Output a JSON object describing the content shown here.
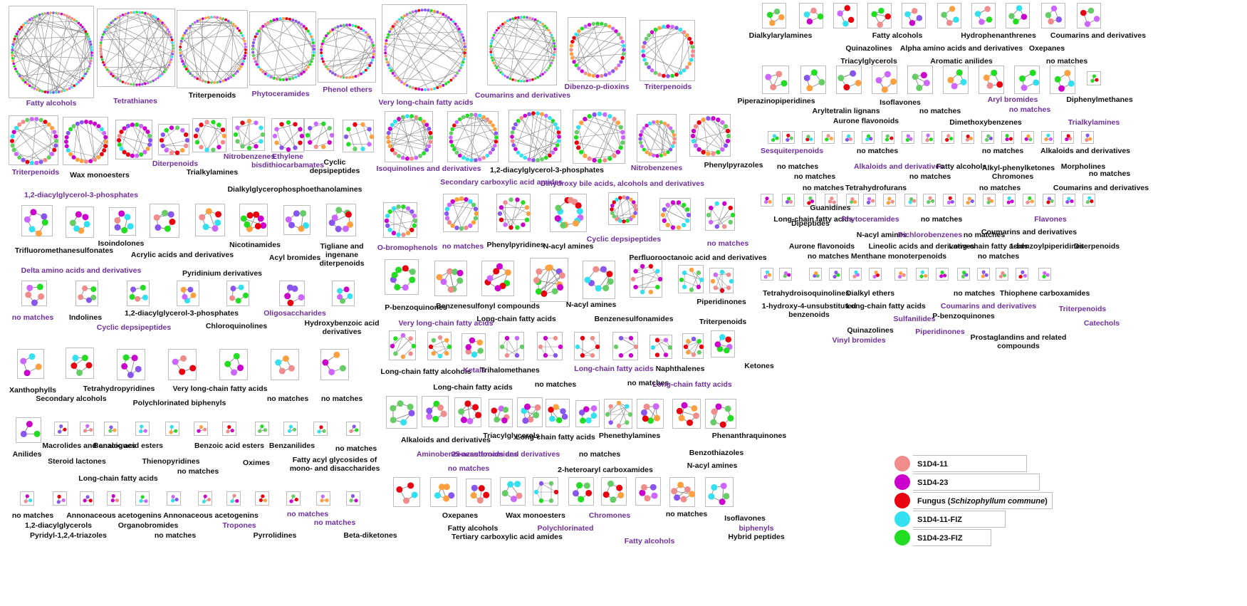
{
  "colors": {
    "edge": "#8a8a8a",
    "node_palette": [
      "#f08c8c",
      "#cc00cc",
      "#e8000e",
      "#33e0f0",
      "#22dd22",
      "#ffa040",
      "#8855ee",
      "#cc66ff",
      "#66cc66"
    ]
  },
  "labels": [
    {
      "text": "Fatty alcohols",
      "color": "purple"
    },
    {
      "text": "Tetrathianes",
      "color": "purple"
    },
    {
      "text": "Triterpenoids",
      "color": "black"
    },
    {
      "text": "Phytoceramides",
      "color": "purple"
    },
    {
      "text": "Phenol ethers",
      "color": "purple"
    },
    {
      "text": "Very long-chain fatty acids",
      "color": "purple"
    },
    {
      "text": "Coumarins and derivatives",
      "color": "purple"
    },
    {
      "text": "Dibenzo-p-dioxins",
      "color": "purple"
    },
    {
      "text": "Triterpenoids",
      "color": "purple"
    },
    {
      "text": "Triterpenoids",
      "color": "purple"
    },
    {
      "text": "Wax monoesters",
      "color": "black"
    },
    {
      "text": "Diterpenoids",
      "color": "purple"
    },
    {
      "text": "Trialkylamines",
      "color": "black"
    },
    {
      "text": "Nitrobenzenes",
      "color": "purple"
    },
    {
      "text": "Ethylene",
      "color": "purple"
    },
    {
      "text": "bisdithiocarbamates",
      "color": "purple"
    },
    {
      "text": "Cyclic",
      "color": "black"
    },
    {
      "text": "depsipeptides",
      "color": "black"
    },
    {
      "text": "1,2-diacylglycerol-3-phosphates",
      "color": "purple"
    },
    {
      "text": "Dialkylglycerophosphoethanolamines",
      "color": "black"
    },
    {
      "text": "Trifluoromethanesulfonates",
      "color": "black"
    },
    {
      "text": "Isoindolones",
      "color": "black"
    },
    {
      "text": "Acrylic acids and derivatives",
      "color": "black"
    },
    {
      "text": "Nicotinamides",
      "color": "black"
    },
    {
      "text": "Acyl bromides",
      "color": "black"
    },
    {
      "text": "Tigliane and",
      "color": "black"
    },
    {
      "text": "ingenane",
      "color": "black"
    },
    {
      "text": "diterpenoids",
      "color": "black"
    },
    {
      "text": "Delta amino acids and derivatives",
      "color": "purple"
    },
    {
      "text": "Pyridinium derivatives",
      "color": "black"
    },
    {
      "text": "no matches",
      "color": "purple"
    },
    {
      "text": "Indolines",
      "color": "black"
    },
    {
      "text": "1,2-diacylglycerol-3-phosphates",
      "color": "black"
    },
    {
      "text": "Oligosaccharides",
      "color": "purple"
    },
    {
      "text": "Chloroquinolines",
      "color": "black"
    },
    {
      "text": "Cyclic depsipeptides",
      "color": "purple"
    },
    {
      "text": "Hydroxybenzoic acid",
      "color": "black"
    },
    {
      "text": "derivatives",
      "color": "black"
    },
    {
      "text": "Xanthophylls",
      "color": "black"
    },
    {
      "text": "Tetrahydropyridines",
      "color": "black"
    },
    {
      "text": "Very long-chain fatty acids",
      "color": "black"
    },
    {
      "text": "Secondary alcohols",
      "color": "black"
    },
    {
      "text": "no matches",
      "color": "black"
    },
    {
      "text": "no matches",
      "color": "black"
    },
    {
      "text": "Polychlorinated biphenyls",
      "color": "black"
    },
    {
      "text": "Anilides",
      "color": "black"
    },
    {
      "text": "Macrolides and analogues",
      "color": "black"
    },
    {
      "text": "Benzoic acid esters",
      "color": "black"
    },
    {
      "text": "Benzoic acid esters",
      "color": "black"
    },
    {
      "text": "Benzanilides",
      "color": "black"
    },
    {
      "text": "no matches",
      "color": "black"
    },
    {
      "text": "Steroid lactones",
      "color": "black"
    },
    {
      "text": "Thienopyridines",
      "color": "black"
    },
    {
      "text": "Oximes",
      "color": "black"
    },
    {
      "text": "Fatty acyl glycosides of",
      "color": "black"
    },
    {
      "text": "mono- and disaccharides",
      "color": "black"
    },
    {
      "text": "no matches",
      "color": "black"
    },
    {
      "text": "Long-chain fatty acids",
      "color": "black"
    },
    {
      "text": "no matches",
      "color": "black"
    },
    {
      "text": "Annonaceous acetogenins",
      "color": "black"
    },
    {
      "text": "Annonaceous acetogenins",
      "color": "black"
    },
    {
      "text": "no matches",
      "color": "purple"
    },
    {
      "text": "1,2-diacylglycerols",
      "color": "black"
    },
    {
      "text": "Organobromides",
      "color": "black"
    },
    {
      "text": "Tropones",
      "color": "purple"
    },
    {
      "text": "no matches",
      "color": "purple"
    },
    {
      "text": "Pyridyl-1,2,4-triazoles",
      "color": "black"
    },
    {
      "text": "no matches",
      "color": "black"
    },
    {
      "text": "Pyrrolidines",
      "color": "black"
    },
    {
      "text": "Beta-diketones",
      "color": "black"
    },
    {
      "text": "Isoquinolines and derivatives",
      "color": "purple"
    },
    {
      "text": "1,2-diacylglycerol-3-phosphates",
      "color": "black"
    },
    {
      "text": "Nitrobenzenes",
      "color": "purple"
    },
    {
      "text": "Phenylpyrazoles",
      "color": "black"
    },
    {
      "text": "Secondary carboxylic acid amides",
      "color": "purple"
    },
    {
      "text": "Dihydroxy bile acids, alcohols and derivatives",
      "color": "purple"
    },
    {
      "text": "O-bromophenols",
      "color": "purple"
    },
    {
      "text": "no matches",
      "color": "purple"
    },
    {
      "text": "Phenylpyridines",
      "color": "black"
    },
    {
      "text": "N-acyl amines",
      "color": "black"
    },
    {
      "text": "Cyclic depsipeptides",
      "color": "purple"
    },
    {
      "text": "no matches",
      "color": "purple"
    },
    {
      "text": "Perfluorooctanoic acid and derivatives",
      "color": "black"
    },
    {
      "text": "P-benzoquinones",
      "color": "black"
    },
    {
      "text": "Benzenesulfonyl compounds",
      "color": "black"
    },
    {
      "text": "N-acyl amines",
      "color": "black"
    },
    {
      "text": "Piperidinones",
      "color": "black"
    },
    {
      "text": "Long-chain fatty acids",
      "color": "black"
    },
    {
      "text": "Benzenesulfonamides",
      "color": "black"
    },
    {
      "text": "Triterpenoids",
      "color": "black"
    },
    {
      "text": "Very long-chain fatty acids",
      "color": "purple"
    },
    {
      "text": "Long-chain fatty alcohols",
      "color": "black"
    },
    {
      "text": "Ketals",
      "color": "purple"
    },
    {
      "text": "Trihalomethanes",
      "color": "black"
    },
    {
      "text": "Long-chain fatty acids",
      "color": "purple"
    },
    {
      "text": "Naphthalenes",
      "color": "black"
    },
    {
      "text": "Ketones",
      "color": "black"
    },
    {
      "text": "Long-chain fatty acids",
      "color": "black"
    },
    {
      "text": "no matches",
      "color": "black"
    },
    {
      "text": "no matches",
      "color": "black"
    },
    {
      "text": "Long-chain fatty acids",
      "color": "purple"
    },
    {
      "text": "Alkaloids and derivatives",
      "color": "black"
    },
    {
      "text": "Triacylglycerols",
      "color": "black"
    },
    {
      "text": "Long-chain fatty acids",
      "color": "black"
    },
    {
      "text": "Phenethylamines",
      "color": "black"
    },
    {
      "text": "Phenanthraquinones",
      "color": "black"
    },
    {
      "text": "Aminobenzenesulfonamides",
      "color": "purple"
    },
    {
      "text": "25-azasteroids and derivatives",
      "color": "purple"
    },
    {
      "text": "no matches",
      "color": "black"
    },
    {
      "text": "Benzothiazoles",
      "color": "black"
    },
    {
      "text": "no matches",
      "color": "purple"
    },
    {
      "text": "N-acyl amines",
      "color": "black"
    },
    {
      "text": "2-heteroaryl carboxamides",
      "color": "black"
    },
    {
      "text": "Oxepanes",
      "color": "black"
    },
    {
      "text": "Wax monoesters",
      "color": "black"
    },
    {
      "text": "Chromones",
      "color": "purple"
    },
    {
      "text": "no matches",
      "color": "black"
    },
    {
      "text": "Isoflavones",
      "color": "black"
    },
    {
      "text": "Fatty alcohols",
      "color": "black"
    },
    {
      "text": "Polychlorinated",
      "color": "purple"
    },
    {
      "text": "biphenyls",
      "color": "purple"
    },
    {
      "text": "Hybrid peptides",
      "color": "black"
    },
    {
      "text": "Tertiary carboxylic acid amides",
      "color": "black"
    },
    {
      "text": "Fatty alcohols",
      "color": "purple"
    },
    {
      "text": "Dialkylarylamines",
      "color": "black"
    },
    {
      "text": "Fatty alcohols",
      "color": "black"
    },
    {
      "text": "Hydrophenanthrenes",
      "color": "black"
    },
    {
      "text": "Coumarins and derivatives",
      "color": "black"
    },
    {
      "text": "Quinazolines",
      "color": "black"
    },
    {
      "text": "Alpha amino acids and derivatives",
      "color": "black"
    },
    {
      "text": "Oxepanes",
      "color": "black"
    },
    {
      "text": "Triacylglycerols",
      "color": "black"
    },
    {
      "text": "Aromatic anilides",
      "color": "black"
    },
    {
      "text": "no matches",
      "color": "black"
    },
    {
      "text": "Piperazinopiperidines",
      "color": "black"
    },
    {
      "text": "Aryl bromides",
      "color": "purple"
    },
    {
      "text": "Diphenylmethanes",
      "color": "black"
    },
    {
      "text": "Isoflavones",
      "color": "black"
    },
    {
      "text": "no matches",
      "color": "purple"
    },
    {
      "text": "Aryltetralin lignans",
      "color": "black"
    },
    {
      "text": "no matches",
      "color": "black"
    },
    {
      "text": "Aurone flavonoids",
      "color": "black"
    },
    {
      "text": "Dimethoxybenzenes",
      "color": "black"
    },
    {
      "text": "Trialkylamines",
      "color": "purple"
    },
    {
      "text": "Sesquiterpenoids",
      "color": "purple"
    },
    {
      "text": "no matches",
      "color": "black"
    },
    {
      "text": "no matches",
      "color": "black"
    },
    {
      "text": "Alkaloids and derivatives",
      "color": "black"
    },
    {
      "text": "no matches",
      "color": "black"
    },
    {
      "text": "Alkaloids and derivatives",
      "color": "purple"
    },
    {
      "text": "Fatty alcohols",
      "color": "black"
    },
    {
      "text": "Alkyl-phenylketones",
      "color": "black"
    },
    {
      "text": "Morpholines",
      "color": "black"
    },
    {
      "text": "no matches",
      "color": "black"
    },
    {
      "text": "no matches",
      "color": "black"
    },
    {
      "text": "Chromones",
      "color": "black"
    },
    {
      "text": "no matches",
      "color": "black"
    },
    {
      "text": "no matches",
      "color": "black"
    },
    {
      "text": "Tetrahydrofurans",
      "color": "black"
    },
    {
      "text": "no matches",
      "color": "black"
    },
    {
      "text": "Coumarins and derivatives",
      "color": "black"
    },
    {
      "text": "Guanidines",
      "color": "black"
    },
    {
      "text": "Long-chain fatty acids",
      "color": "black"
    },
    {
      "text": "Phytoceramides",
      "color": "purple"
    },
    {
      "text": "no matches",
      "color": "black"
    },
    {
      "text": "Flavones",
      "color": "purple"
    },
    {
      "text": "Dipeptides",
      "color": "black"
    },
    {
      "text": "N-acyl amines",
      "color": "black"
    },
    {
      "text": "Dichlorobenzenes",
      "color": "purple"
    },
    {
      "text": "Coumarins and derivatives",
      "color": "black"
    },
    {
      "text": "no matches",
      "color": "black"
    },
    {
      "text": "Aurone flavonoids",
      "color": "black"
    },
    {
      "text": "Lineolic acids and derivatives",
      "color": "black"
    },
    {
      "text": "Long-chain fatty acids",
      "color": "black"
    },
    {
      "text": "1-benzoylpiperidines",
      "color": "black"
    },
    {
      "text": "Diterpenoids",
      "color": "black"
    },
    {
      "text": "no matches",
      "color": "black"
    },
    {
      "text": "Menthane monoterpenoids",
      "color": "black"
    },
    {
      "text": "no matches",
      "color": "black"
    },
    {
      "text": "Tetrahydroisoquinolines",
      "color": "black"
    },
    {
      "text": "Dialkyl ethers",
      "color": "black"
    },
    {
      "text": "no matches",
      "color": "black"
    },
    {
      "text": "Thiophene carboxamides",
      "color": "black"
    },
    {
      "text": "1-hydroxy-4-unsubstituted",
      "color": "black"
    },
    {
      "text": "benzenoids",
      "color": "black"
    },
    {
      "text": "Long-chain fatty acids",
      "color": "black"
    },
    {
      "text": "Coumarins and derivatives",
      "color": "purple"
    },
    {
      "text": "Triterpenoids",
      "color": "purple"
    },
    {
      "text": "Sulfanilides",
      "color": "purple"
    },
    {
      "text": "P-benzoquinones",
      "color": "black"
    },
    {
      "text": "Catechols",
      "color": "purple"
    },
    {
      "text": "Quinazolines",
      "color": "black"
    },
    {
      "text": "Piperidinones",
      "color": "purple"
    },
    {
      "text": "Vinyl bromides",
      "color": "purple"
    },
    {
      "text": "Prostaglandins and related",
      "color": "black"
    },
    {
      "text": "compounds",
      "color": "black"
    }
  ],
  "legend": [
    {
      "label": "S1D4-11",
      "color": "#f08c8c"
    },
    {
      "label": "S1D4-23",
      "color": "#cc00cc"
    },
    {
      "label": "Fungus (",
      "italic": "Schizophyllum commune",
      "suffix": ")",
      "color": "#e8000e"
    },
    {
      "label": "S1D4-11-FIZ",
      "color": "#33e0f0"
    },
    {
      "label": "S1D4-23-FIZ",
      "color": "#22dd22"
    }
  ]
}
